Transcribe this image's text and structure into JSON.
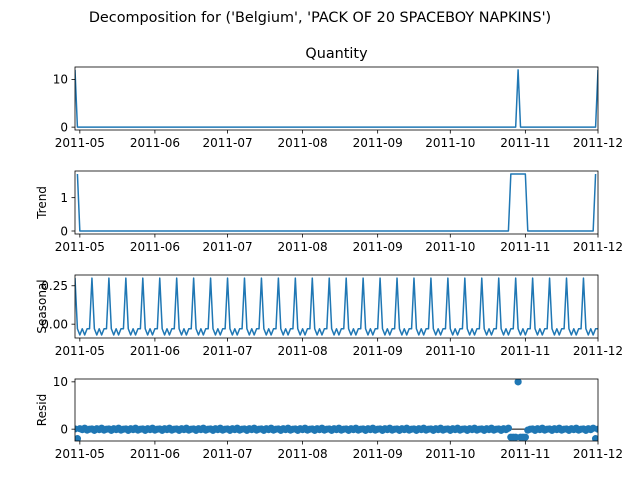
{
  "figure": {
    "suptitle": "Decomposition for ('Belgium', 'PACK OF 20 SPACEBOY NAPKINS')"
  },
  "colors": {
    "series": "#1f77b4",
    "axis": "#000000",
    "background": "#ffffff"
  },
  "chart_data": [
    {
      "type": "line",
      "title": "Quantity",
      "ylabel": "",
      "xlabel": "",
      "xlim": [
        "2011-04-29",
        "2011-12-01"
      ],
      "xticks": [
        "2011-05",
        "2011-06",
        "2011-07",
        "2011-08",
        "2011-09",
        "2011-10",
        "2011-11",
        "2011-12"
      ],
      "ylim": [
        -0.6,
        12.6
      ],
      "yticks": [
        0,
        10
      ],
      "grid": false,
      "series": [
        {
          "points": [
            {
              "x": "2011-04-29",
              "y": 12
            },
            {
              "x": "2011-04-30",
              "y": 0
            },
            {
              "x": "2011-10-28",
              "y": 0
            },
            {
              "x": "2011-10-29",
              "y": 12
            },
            {
              "x": "2011-10-30",
              "y": 0
            },
            {
              "x": "2011-11-30",
              "y": 0
            },
            {
              "x": "2011-12-01",
              "y": 12
            }
          ]
        }
      ]
    },
    {
      "type": "line",
      "title": "",
      "ylabel": "Trend",
      "xlabel": "",
      "xlim": [
        "2011-04-29",
        "2011-12-01"
      ],
      "xticks": [
        "2011-05",
        "2011-06",
        "2011-07",
        "2011-08",
        "2011-09",
        "2011-10",
        "2011-11",
        "2011-12"
      ],
      "ylim": [
        -0.09,
        1.8
      ],
      "yticks": [
        0,
        1
      ],
      "grid": false,
      "series": [
        {
          "points": [
            {
              "x": "2011-04-30",
              "y": 1.71
            },
            {
              "x": "2011-05-01",
              "y": 0
            },
            {
              "x": "2011-10-25",
              "y": 0
            },
            {
              "x": "2011-10-26",
              "y": 1.71
            },
            {
              "x": "2011-11-01",
              "y": 1.71
            },
            {
              "x": "2011-11-02",
              "y": 0
            },
            {
              "x": "2011-11-29",
              "y": 0
            },
            {
              "x": "2011-11-30",
              "y": 1.71
            }
          ]
        }
      ]
    },
    {
      "type": "line",
      "title": "",
      "ylabel": "Seasonal",
      "xlabel": "",
      "xlim": [
        "2011-04-29",
        "2011-12-01"
      ],
      "xticks": [
        "2011-05",
        "2011-06",
        "2011-07",
        "2011-08",
        "2011-09",
        "2011-10",
        "2011-11",
        "2011-12"
      ],
      "ylim": [
        -0.09,
        0.32
      ],
      "yticks": [
        0.0,
        0.25
      ],
      "ytick_labels": [
        "0.00",
        "0.25"
      ],
      "grid": false,
      "series": [
        {
          "period_days": 7,
          "start": "2011-04-29",
          "end": "2011-12-01",
          "weekly_pattern": [
            0.3,
            -0.03,
            -0.07,
            -0.03,
            -0.07,
            -0.03,
            -0.03
          ]
        }
      ]
    },
    {
      "type": "scatter",
      "title": "",
      "ylabel": "Resid",
      "xlabel": "",
      "xlim": [
        "2011-04-29",
        "2011-12-01"
      ],
      "xticks": [
        "2011-05",
        "2011-06",
        "2011-07",
        "2011-08",
        "2011-09",
        "2011-10",
        "2011-11",
        "2011-12"
      ],
      "ylim": [
        -2.5,
        10.6
      ],
      "yticks": [
        0,
        10
      ],
      "zero_line": true,
      "grid": false,
      "series": [
        {
          "start": "2011-04-29",
          "end": "2011-12-01",
          "baseline": 0,
          "wobble": [
            0.05,
            -0.25,
            0.1,
            -0.1,
            0.2,
            -0.2,
            0.0
          ],
          "overrides": [
            {
              "x": "2011-04-30",
              "y": -2.0
            },
            {
              "x": "2011-10-26",
              "y": -1.7
            },
            {
              "x": "2011-10-27",
              "y": -1.7
            },
            {
              "x": "2011-10-28",
              "y": -1.7
            },
            {
              "x": "2011-10-29",
              "y": 10.0
            },
            {
              "x": "2011-10-30",
              "y": -1.7
            },
            {
              "x": "2011-10-31",
              "y": -1.7
            },
            {
              "x": "2011-11-01",
              "y": -1.7
            },
            {
              "x": "2011-11-30",
              "y": -2.0
            }
          ]
        }
      ]
    }
  ]
}
